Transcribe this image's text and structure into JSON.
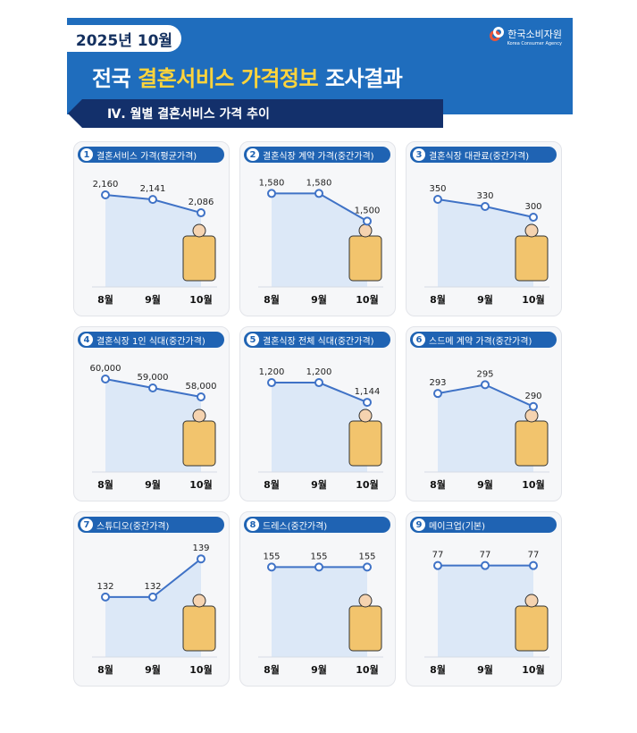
{
  "header": {
    "date": "2025년 10월",
    "logo_kr": "한국소비자원",
    "logo_en": "Korea Consumer Agency",
    "title_a": "전국 ",
    "title_b": "결혼서비스 가격정보",
    "title_c": " 조사결과",
    "section": "Ⅳ. 월별 결혼서비스 가격 추이"
  },
  "colors": {
    "header": "#1f6dbd",
    "title_highlight": "#ffd43b",
    "line": "#3f72c6",
    "fill": "#dce8f7"
  },
  "chart_data": [
    {
      "type": "line",
      "num": "1",
      "title": "결혼서비스 가격(평균가격)",
      "categories": [
        "8월",
        "9월",
        "10월"
      ],
      "values": [
        2160,
        2141,
        2086
      ],
      "labels": [
        "2,160",
        "2,141",
        "2,086"
      ],
      "ylim": [
        1780,
        2230
      ],
      "icon": "couple-icon"
    },
    {
      "type": "line",
      "num": "2",
      "title": "결혼식장 계약 가격(중간가격)",
      "categories": [
        "8월",
        "9월",
        "10월"
      ],
      "values": [
        1580,
        1580,
        1500
      ],
      "labels": [
        "1,580",
        "1,580",
        "1,500"
      ],
      "ylim": [
        1310,
        1625
      ],
      "icon": "contract-document-icon"
    },
    {
      "type": "line",
      "num": "3",
      "title": "결혼식장 대관료(중간가격)",
      "categories": [
        "8월",
        "9월",
        "10월"
      ],
      "values": [
        350,
        330,
        300
      ],
      "labels": [
        "350",
        "330",
        "300"
      ],
      "ylim": [
        105,
        410
      ],
      "icon": "wedding-hall-icon"
    },
    {
      "type": "line",
      "num": "4",
      "title": "결혼식장 1인 식대(중간가격)",
      "categories": [
        "8월",
        "9월",
        "10월"
      ],
      "values": [
        60000,
        59000,
        58000
      ],
      "labels": [
        "60,000",
        "59,000",
        "58,000"
      ],
      "ylim": [
        49600,
        61800
      ],
      "icon": "waiter-icon"
    },
    {
      "type": "line",
      "num": "5",
      "title": "결혼식장 전체 식대(중간가격)",
      "categories": [
        "8월",
        "9월",
        "10월"
      ],
      "values": [
        1200,
        1200,
        1144
      ],
      "labels": [
        "1,200",
        "1,200",
        "1,144"
      ],
      "ylim": [
        946,
        1256
      ],
      "icon": "guests-icon"
    },
    {
      "type": "line",
      "num": "6",
      "title": "스드메 계약 가격(중간가격)",
      "categories": [
        "8월",
        "9월",
        "10월"
      ],
      "values": [
        293,
        295,
        290
      ],
      "labels": [
        "293",
        "295",
        "290"
      ],
      "ylim": [
        275,
        300
      ],
      "icon": "contract-icon"
    },
    {
      "type": "line",
      "num": "7",
      "title": "스튜디오(중간가격)",
      "categories": [
        "8월",
        "9월",
        "10월"
      ],
      "values": [
        132,
        132,
        139
      ],
      "labels": [
        "132",
        "132",
        "139"
      ],
      "ylim": [
        121,
        141
      ],
      "icon": "photographer-icon"
    },
    {
      "type": "line",
      "num": "8",
      "title": "드레스(중간가격)",
      "categories": [
        "8월",
        "9월",
        "10월"
      ],
      "values": [
        155,
        155,
        155
      ],
      "labels": [
        "155",
        "155",
        "155"
      ],
      "ylim": [
        122,
        162
      ],
      "icon": "dress-mirror-icon"
    },
    {
      "type": "line",
      "num": "9",
      "title": "메이크업(기본)",
      "categories": [
        "8월",
        "9월",
        "10월"
      ],
      "values": [
        77,
        77,
        77
      ],
      "labels": [
        "77",
        "77",
        "77"
      ],
      "ylim": [
        51,
        82
      ],
      "icon": "makeup-icon"
    }
  ]
}
